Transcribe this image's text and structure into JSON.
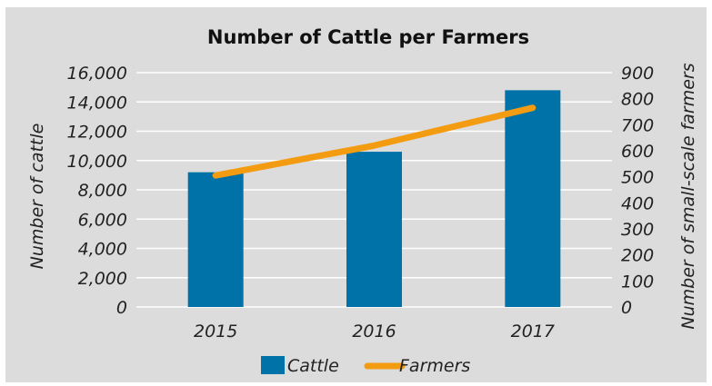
{
  "chart_data": {
    "type": "bar",
    "title": "Number of Cattle per Farmers",
    "categories": [
      "2015",
      "2016",
      "2017"
    ],
    "series": [
      {
        "name": "Cattle",
        "type": "bar",
        "axis": "left",
        "values": [
          9200,
          10600,
          14800
        ],
        "color": "#0072a8"
      },
      {
        "name": "Farmers",
        "type": "line",
        "axis": "right",
        "values": [
          505,
          620,
          765
        ],
        "color": "#f39c12"
      }
    ],
    "ylabel": "Number of cattle",
    "ylabel_right": "Number of small-scale farmers",
    "ylim": [
      0,
      16000
    ],
    "yticks": [
      "0",
      "2,000",
      "4,000",
      "6,000",
      "8,000",
      "10,000",
      "12,000",
      "14,000",
      "16,000"
    ],
    "ylim_right": [
      0,
      900
    ],
    "yticks_right": [
      "0",
      "100",
      "200",
      "300",
      "400",
      "500",
      "600",
      "700",
      "800",
      "900"
    ],
    "grid": true,
    "legend": "bottom",
    "background": "#dcdcdc",
    "gridline_color": "#ffffff"
  }
}
